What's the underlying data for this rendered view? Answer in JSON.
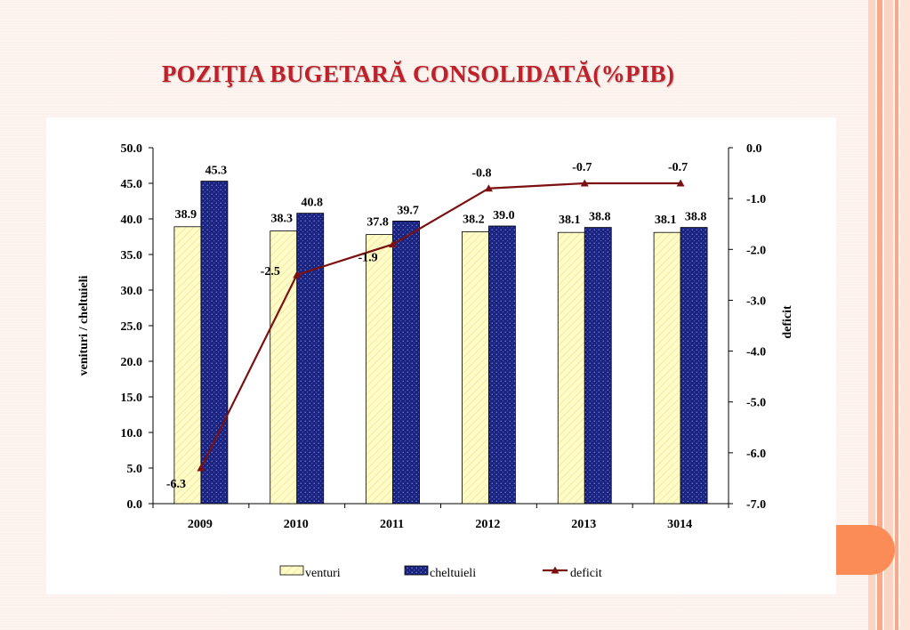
{
  "slide": {
    "title": "POZIŢIA BUGETARĂ CONSOLIDATĂ(%PIB)",
    "colors": {
      "title": "#c0202a",
      "accent_stripe": "#f7a98a",
      "accent_circle": "#fb8c57",
      "venturi_fill": "#fffcc8",
      "cheltuieli_fill": "#1a2380",
      "deficit_line": "#7b1010"
    }
  },
  "chart_data": {
    "type": "bar",
    "categories": [
      "2009",
      "2010",
      "2011",
      "2012",
      "2013",
      "3014"
    ],
    "series": [
      {
        "name": "venturi",
        "kind": "bar",
        "axis": "left",
        "values": [
          38.9,
          38.3,
          37.8,
          38.2,
          38.1,
          38.1
        ],
        "labels": [
          "38.9",
          "38.3",
          "37.8",
          "38.2",
          "38.1",
          "38.1"
        ]
      },
      {
        "name": "cheltuieli",
        "kind": "bar",
        "axis": "left",
        "values": [
          45.3,
          40.8,
          39.7,
          39.0,
          38.8,
          38.8
        ],
        "labels": [
          "45.3",
          "40.8",
          "39.7",
          "39.0",
          "38.8",
          "38.8"
        ]
      },
      {
        "name": "deficit",
        "kind": "line",
        "axis": "right",
        "values": [
          -6.3,
          -2.5,
          -1.9,
          -0.8,
          -0.7,
          -0.7
        ],
        "labels": [
          "-6.3",
          "-2.5",
          "-1.9",
          "-0.8",
          "-0.7",
          "-0.7"
        ]
      }
    ],
    "ylabel": "venituri / cheltuieli",
    "y2label": "deficit",
    "ylim": [
      0,
      50
    ],
    "y2lim": [
      -7,
      0
    ],
    "yticks": [
      "0.0",
      "5.0",
      "10.0",
      "15.0",
      "20.0",
      "25.0",
      "30.0",
      "35.0",
      "40.0",
      "45.0",
      "50.0"
    ],
    "y2ticks": [
      "-7.0",
      "-6.0",
      "-5.0",
      "-4.0",
      "-3.0",
      "-2.0",
      "-1.0",
      "0.0"
    ],
    "grid": false,
    "legend": {
      "position": "bottom",
      "items": [
        "venturi",
        "cheltuieli",
        "deficit"
      ]
    }
  }
}
